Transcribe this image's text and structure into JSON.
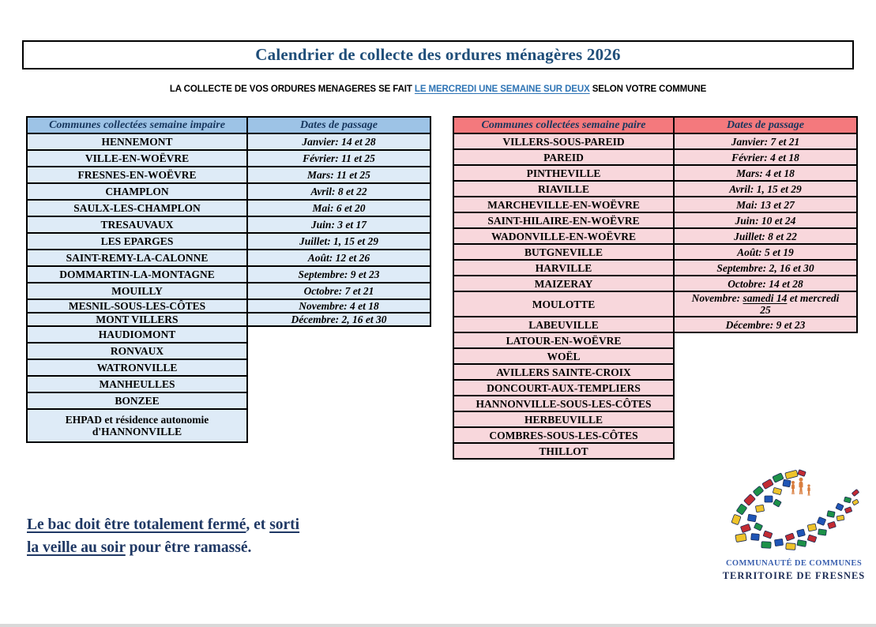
{
  "page": {
    "title": "Calendrier de collecte des ordures ménagères 2026",
    "subtitle_segments": [
      {
        "text": "LA COLLECTE DE VOS ORDURES MENAGERES SE FAIT "
      },
      {
        "text": "LE MERCREDI UNE SEMAINE SUR DEUX",
        "blue": true
      },
      {
        "text": " SELON VOTRE COMMUNE"
      }
    ]
  },
  "colors": {
    "odd_header_bg": "#9DC3E6",
    "odd_row_bg": "#DEEBF7",
    "even_header_bg": "#F4797D",
    "even_row_bg": "#F8D7DC",
    "title_text": "#1F4E79",
    "subtitle_link": "#2E74B5",
    "note_text": "#1F3864",
    "border": "#000000"
  },
  "tables": {
    "odd": {
      "commune_header": "Communes collectées semaine impaire",
      "dates_header": "Dates de passage",
      "rows": [
        {
          "commune": "HENNEMONT",
          "date": "Janvier: 14 et 28"
        },
        {
          "commune": "VILLE-EN-WOËVRE",
          "date": "Février: 11 et 25"
        },
        {
          "commune": "FRESNES-EN-WOËVRE",
          "date": "Mars: 11 et 25"
        },
        {
          "commune": "CHAMPLON",
          "date": "Avril: 8 et 22"
        },
        {
          "commune": "SAULX-LES-CHAMPLON",
          "date": "Mai: 6 et 20"
        },
        {
          "commune": "TRESAUVAUX",
          "date": "Juin: 3 et 17"
        },
        {
          "commune": "LES EPARGES",
          "date": "Juillet: 1, 15 et 29"
        },
        {
          "commune": "SAINT-REMY-LA-CALONNE",
          "date": "Août: 12 et 26"
        },
        {
          "commune": "DOMMARTIN-LA-MONTAGNE",
          "date": "Septembre: 9 et 23"
        },
        {
          "commune": "MOUILLY",
          "date": "Octobre: 7 et 21"
        },
        {
          "commune": "MESNIL-SOUS-LES-CÔTES",
          "date": "Novembre: 4 et 18",
          "compact": true
        },
        {
          "commune": "MONT VILLERS",
          "date": "Décembre: 2, 16 et 30",
          "compact": true
        },
        {
          "commune": "HAUDIOMONT"
        },
        {
          "commune": "RONVAUX"
        },
        {
          "commune": "WATRONVILLE"
        },
        {
          "commune": "MANHEULLES"
        },
        {
          "commune": "BONZEE"
        },
        {
          "commune": "EHPAD et résidence autonomie",
          "commune2": "d'HANNONVILLE",
          "tall": true
        }
      ]
    },
    "even": {
      "commune_header": "Communes collectées semaine paire",
      "dates_header": "Dates de passage",
      "rows": [
        {
          "commune": "VILLERS-SOUS-PAREID",
          "date": "Janvier: 7 et 21"
        },
        {
          "commune": "PAREID",
          "date": "Février: 4 et 18"
        },
        {
          "commune": "PINTHEVILLE",
          "date": "Mars: 4 et 18"
        },
        {
          "commune": "RIAVILLE",
          "date": "Avril: 1, 15 et 29"
        },
        {
          "commune": "MARCHEVILLE-EN-WOËVRE",
          "date": "Mai: 13 et 27"
        },
        {
          "commune": "SAINT-HILAIRE-EN-WOËVRE",
          "date": "Juin: 10 et 24"
        },
        {
          "commune": "WADONVILLE-EN-WOËVRE",
          "date": "Juillet: 8 et 22"
        },
        {
          "commune": "BUTGNEVILLE",
          "date": "Août: 5 et 19"
        },
        {
          "commune": "HARVILLE",
          "date": "Septembre: 2, 16 et 30"
        },
        {
          "commune": "MAIZERAY",
          "date": "Octobre: 14 et 28"
        },
        {
          "commune": "MOULOTTE",
          "tall2": true,
          "date_segments": [
            {
              "text": "Novembre:  "
            },
            {
              "text": "samedi 14",
              "underline": true
            },
            {
              "text": " et mercredi"
            },
            {
              "br": true
            },
            {
              "text": "25"
            }
          ]
        },
        {
          "commune": "LABEUVILLE",
          "date": "Décembre: 9 et  23"
        },
        {
          "commune": "LATOUR-EN-WOËVRE"
        },
        {
          "commune": "WOËL"
        },
        {
          "commune": "AVILLERS SAINTE-CROIX"
        },
        {
          "commune": "DONCOURT-AUX-TEMPLIERS"
        },
        {
          "commune": "HANNONVILLE-SOUS-LES-CÔTES"
        },
        {
          "commune": "HERBEUVILLE"
        },
        {
          "commune": "COMBRES-SOUS-LES-CÔTES"
        },
        {
          "commune": "THILLOT"
        }
      ]
    }
  },
  "note": {
    "lines": [
      [
        {
          "text": "Le bac doit être totalement fermé",
          "underline": true
        },
        {
          "text": ", et "
        },
        {
          "text": "sorti ",
          "underline": true
        }
      ],
      [
        {
          "text": "la veille au soir",
          "underline": true
        },
        {
          "text": " pour être ramassé."
        }
      ]
    ]
  },
  "logo": {
    "line1": "COMMUNAUTÉ DE COMMUNES",
    "line2": "TERRITOIRE DE FRESNES"
  }
}
